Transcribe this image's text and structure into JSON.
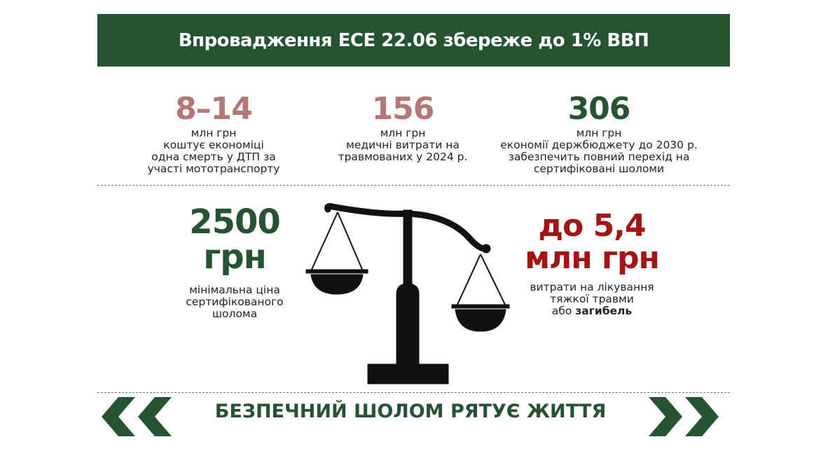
{
  "header": {
    "title": "Впровадження ЕСЕ 22.06 збереже до 1% ВВП"
  },
  "top_stats": [
    {
      "value": "8–14",
      "lines": [
        "млн грн",
        "коштує економіці",
        "одна смерть у ДТП за",
        "участі мототранспорту"
      ]
    },
    {
      "value": "156",
      "lines": [
        "млн грн",
        "медичні витрати на",
        "травмованих у 2024 р."
      ]
    },
    {
      "value": "306",
      "lines": [
        "млн грн",
        "економії держбюджету до 2030 р.",
        "забезпечить повний перехід на",
        "сертифіковані шоломи"
      ]
    }
  ],
  "left_stat": {
    "value_line1": "2500",
    "value_line2": "грн",
    "lines": [
      "мінімальна ціна",
      "сертифікованого",
      "шолома"
    ]
  },
  "right_stat": {
    "value_line1": "до 5,4",
    "value_line2": "млн грн",
    "lines": [
      "витрати на лікування",
      "тяжкої травми"
    ],
    "last_prefix": "або ",
    "last_bold": "загибель"
  },
  "footer": {
    "slogan": "БЕЗПЕЧНИЙ ШОЛОМ РЯТУЄ ЖИТТЯ"
  },
  "icons": {
    "center": "balance-scale-icon",
    "left": "double-chevron-left-icon",
    "right": "double-chevron-right-icon"
  },
  "colors": {
    "brand_green": "#265332",
    "rose": "#b57676",
    "red": "#a31515"
  }
}
